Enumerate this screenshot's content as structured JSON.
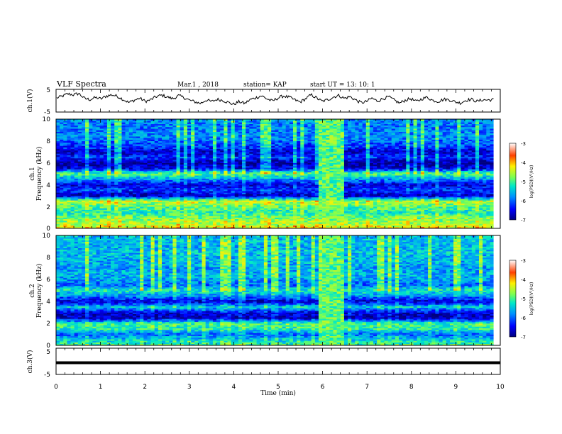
{
  "header": {
    "title": "VLF Spectra",
    "date": "Mar.1  , 2018",
    "station": "station= KAP",
    "start_ut": "start  UT  =   13: 10: 1"
  },
  "chart_data": [
    {
      "type": "line",
      "panel": "ch1-waveform",
      "ylabel": "ch.1(V)",
      "ylim": [
        -5,
        5
      ],
      "yticks": [
        "5",
        "-5"
      ],
      "xlim": [
        0,
        10
      ],
      "series": [
        {
          "values": [
            1.2,
            2.0,
            3.0,
            2.6,
            3.2,
            1.0,
            0.5,
            1.4,
            0.8,
            2.1,
            2.6,
            1.9,
            0.6,
            -0.8,
            0.2,
            1.1,
            -0.3,
            0.4,
            1.8,
            2.4,
            1.6,
            0.9,
            2.2,
            1.4,
            0.2,
            -0.5,
            -1.2,
            0.3,
            -0.4,
            0.6,
            0.2,
            -0.8,
            -1.6,
            -0.4,
            -1.2,
            0.5,
            1.3,
            2.2,
            0.8,
            -0.2,
            1.2,
            2.1,
            1.5,
            0.4,
            -0.6,
            0.8,
            2.6,
            1.2,
            -0.3,
            0.4,
            1.6,
            2.3,
            1.0,
            1.8,
            0.4,
            -0.9,
            -0.4,
            1.1,
            -0.2,
            0.9,
            1.7,
            0.3,
            -1.1,
            0.2,
            0.9,
            -0.4,
            0.8,
            1.5,
            0.1,
            -0.3,
            0.6,
            0.4,
            -0.5,
            -1.0,
            0.2,
            0.6,
            -0.3,
            0.4,
            0.3,
            0.5
          ]
        }
      ]
    },
    {
      "type": "heatmap",
      "panel": "ch1-spectrogram",
      "ylabel": "ch.1 Frequency (kHz)",
      "ylabel_lines": [
        "ch.1",
        "Frequency  (kHz)"
      ],
      "ylim": [
        0,
        10
      ],
      "yticks": [
        "0",
        "2",
        "4",
        "6",
        "8",
        "10"
      ],
      "xlim": [
        0,
        9.85
      ],
      "burst_start_min": 5.9,
      "burst_end_min": 6.45,
      "colorbar": {
        "label": "log(PSD)(V²/Hz)",
        "range": [
          -7,
          -3
        ],
        "ticks": [
          "-3",
          "-4",
          "-5",
          "-6",
          "-7"
        ]
      },
      "freq_profile_khz": [
        0,
        0.5,
        1,
        1.5,
        2,
        2.5,
        3,
        3.5,
        4,
        4.5,
        5,
        5.5,
        6,
        6.5,
        7,
        7.5,
        8,
        8.5,
        9,
        9.5,
        10
      ],
      "level_profile": [
        -4.2,
        -4.6,
        -4.8,
        -5.2,
        -4.9,
        -4.5,
        -6.8,
        -6.2,
        -6.6,
        -5.8,
        -4.9,
        -6.5,
        -6.9,
        -6.2,
        -6.7,
        -6.2,
        -6.0,
        -5.8,
        -5.9,
        -5.9,
        -5.8
      ]
    },
    {
      "type": "heatmap",
      "panel": "ch2-spectrogram",
      "ylabel": "ch.2 Frequency (kHz)",
      "ylabel_lines": [
        "ch.2",
        "Frequency  (kHz)"
      ],
      "ylim": [
        0,
        10
      ],
      "yticks": [
        "0",
        "2",
        "4",
        "6",
        "8",
        "10"
      ],
      "xlim": [
        0,
        9.85
      ],
      "burst_start_min": 5.9,
      "burst_end_min": 6.45,
      "colorbar": {
        "label": "log(PSD)(V²/Hz)",
        "range": [
          -7,
          -3
        ],
        "ticks": [
          "-3",
          "-4",
          "-5",
          "-6",
          "-7"
        ]
      },
      "freq_profile_khz": [
        0,
        0.5,
        1,
        1.5,
        2,
        2.5,
        3,
        3.5,
        4,
        4.5,
        5,
        5.5,
        6,
        6.5,
        7,
        7.5,
        8,
        8.5,
        9,
        9.5,
        10
      ],
      "level_profile": [
        -5.0,
        -5.4,
        -6.0,
        -5.2,
        -5.0,
        -6.8,
        -6.6,
        -5.4,
        -6.7,
        -5.8,
        -5.2,
        -6.0,
        -5.7,
        -5.6,
        -5.7,
        -5.6,
        -5.6,
        -5.5,
        -5.6,
        -5.5,
        -5.6
      ]
    },
    {
      "type": "line",
      "panel": "ch3-waveform",
      "ylabel": "ch.3(V)",
      "ylim": [
        -5,
        5
      ],
      "yticks": [
        "5",
        "-5"
      ],
      "xlim": [
        0,
        10
      ],
      "series": [
        {
          "values": [
            0,
            0
          ]
        }
      ]
    }
  ],
  "xaxis": {
    "label": "Time  (min)",
    "ticks": [
      "0",
      "1",
      "2",
      "3",
      "4",
      "5",
      "6",
      "7",
      "8",
      "9",
      "10"
    ]
  },
  "colors": {
    "background": "#ffffff",
    "axis": "#000000",
    "trace": "#000000"
  }
}
